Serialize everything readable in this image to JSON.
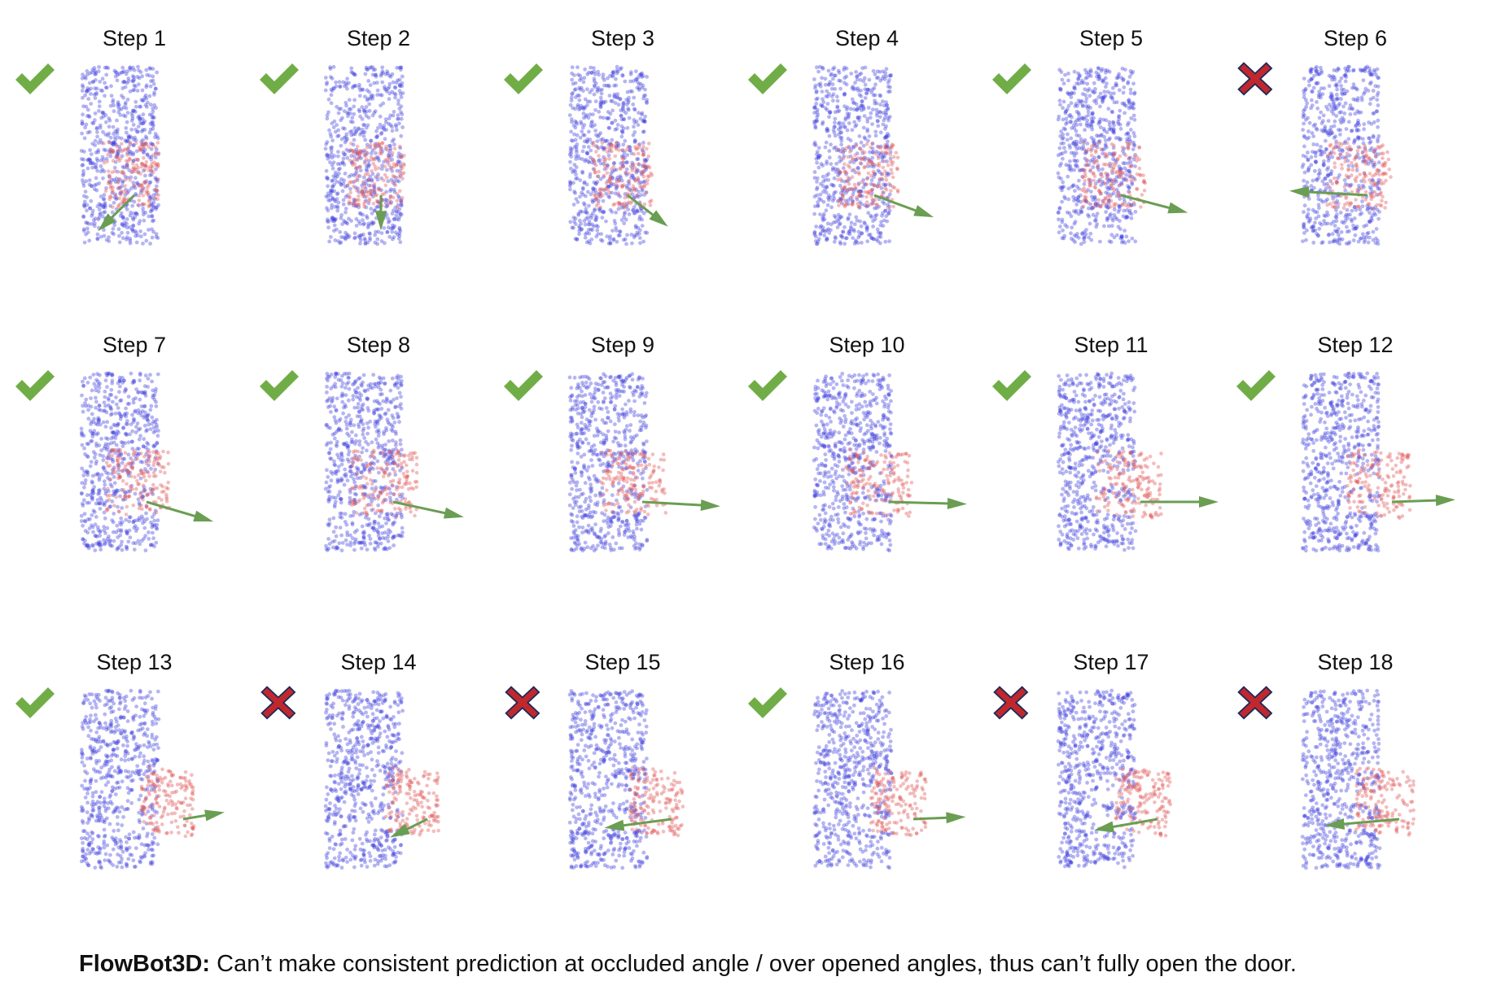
{
  "steps": [
    {
      "label": "Step 1",
      "success": true,
      "open": 0.0,
      "arrow": [
        -0.9,
        1.6
      ]
    },
    {
      "label": "Step 2",
      "success": true,
      "open": 0.05,
      "arrow": [
        0.0,
        1.5
      ]
    },
    {
      "label": "Step 3",
      "success": true,
      "open": 0.1,
      "arrow": [
        1.0,
        1.4
      ]
    },
    {
      "label": "Step 4",
      "success": true,
      "open": 0.15,
      "arrow": [
        1.5,
        1.0
      ]
    },
    {
      "label": "Step 5",
      "success": true,
      "open": 0.2,
      "arrow": [
        1.7,
        0.8
      ]
    },
    {
      "label": "Step 6",
      "success": false,
      "open": 0.25,
      "arrow": [
        -2.0,
        -0.2
      ]
    },
    {
      "label": "Step 7",
      "success": true,
      "open": 0.25,
      "arrow": [
        1.7,
        0.9
      ]
    },
    {
      "label": "Step 8",
      "success": true,
      "open": 0.3,
      "arrow": [
        1.8,
        0.7
      ]
    },
    {
      "label": "Step 9",
      "success": true,
      "open": 0.4,
      "arrow": [
        2.0,
        0.2
      ]
    },
    {
      "label": "Step 10",
      "success": true,
      "open": 0.45,
      "arrow": [
        2.0,
        0.1
      ]
    },
    {
      "label": "Step 11",
      "success": true,
      "open": 0.6,
      "arrow": [
        2.0,
        0.0
      ]
    },
    {
      "label": "Step 12",
      "success": true,
      "open": 0.75,
      "arrow": [
        1.6,
        -0.1
      ]
    },
    {
      "label": "Step 13",
      "success": true,
      "open": 1.0,
      "arrow": [
        1.0,
        -0.3
      ]
    },
    {
      "label": "Step 14",
      "success": false,
      "open": 1.0,
      "arrow": [
        -0.9,
        0.8
      ]
    },
    {
      "label": "Step 15",
      "success": false,
      "open": 1.0,
      "arrow": [
        -1.7,
        0.4
      ]
    },
    {
      "label": "Step 16",
      "success": true,
      "open": 0.95,
      "arrow": [
        1.3,
        -0.1
      ]
    },
    {
      "label": "Step 17",
      "success": false,
      "open": 0.95,
      "arrow": [
        -1.6,
        0.5
      ]
    },
    {
      "label": "Step 18",
      "success": false,
      "open": 0.9,
      "arrow": [
        -1.9,
        0.3
      ]
    }
  ],
  "caption": {
    "bold": "FlowBot3D:",
    "text": " Can’t make consistent prediction at occluded angle / over opened angles, thus can’t fully open the door."
  },
  "colors": {
    "frame_points": "#3d3ddd",
    "door_points": "#e05a5a",
    "arrow": "#6a9e52",
    "check": "#70ad47",
    "cross": "#c0282d",
    "cross_outline": "#1f2a5a"
  }
}
